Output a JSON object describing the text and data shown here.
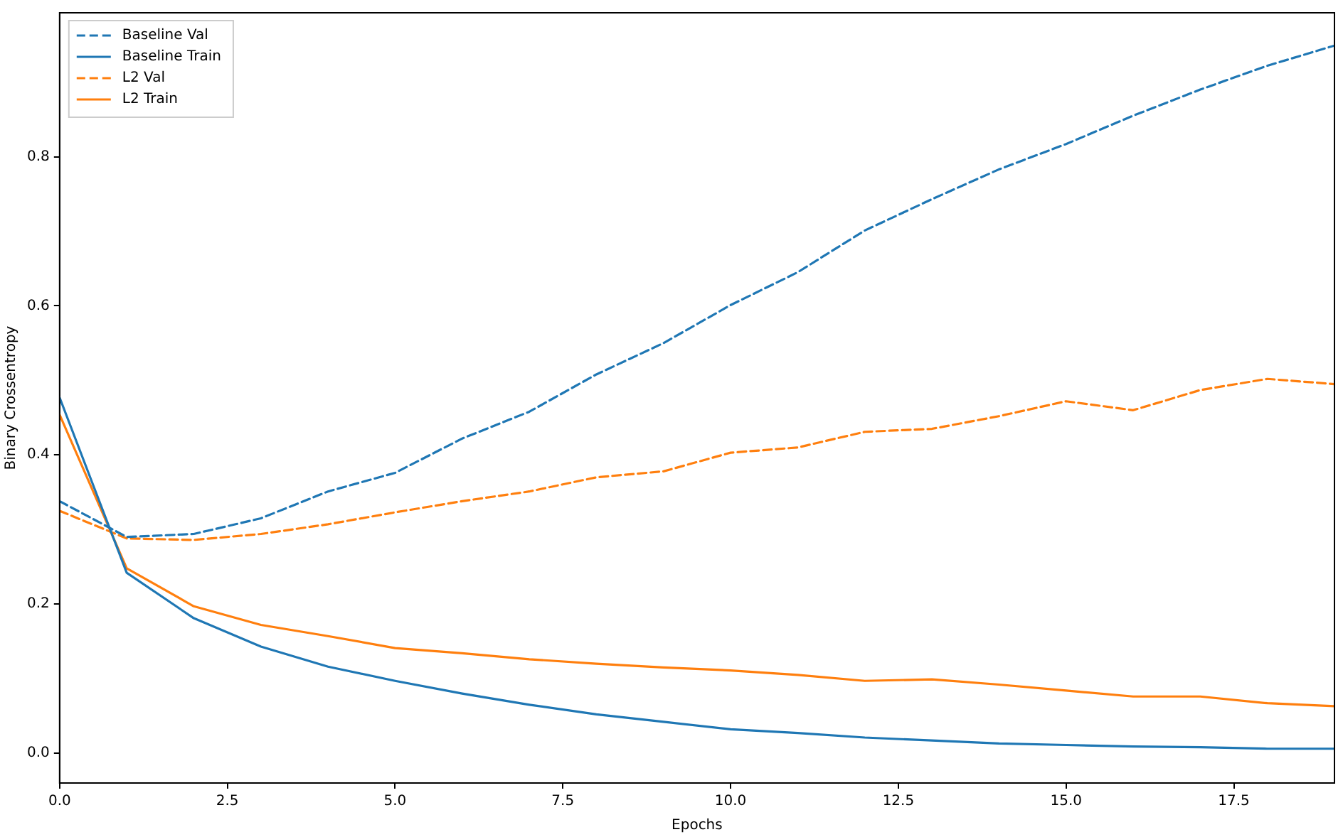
{
  "chart_data": {
    "type": "line",
    "xlabel": "Epochs",
    "ylabel": "Binary Crossentropy",
    "x": [
      0,
      1,
      2,
      3,
      4,
      5,
      6,
      7,
      8,
      9,
      10,
      11,
      12,
      13,
      14,
      15,
      16,
      17,
      18,
      19
    ],
    "series": [
      {
        "name": "Baseline Val",
        "color": "#1f77b4",
        "line_style": "dashed",
        "values": [
          0.338,
          0.29,
          0.294,
          0.315,
          0.351,
          0.376,
          0.422,
          0.458,
          0.508,
          0.55,
          0.601,
          0.645,
          0.701,
          0.743,
          0.783,
          0.817,
          0.855,
          0.89,
          0.922,
          0.949
        ]
      },
      {
        "name": "Baseline Train",
        "color": "#1f77b4",
        "line_style": "solid",
        "values": [
          0.477,
          0.242,
          0.181,
          0.143,
          0.116,
          0.097,
          0.08,
          0.065,
          0.052,
          0.042,
          0.032,
          0.027,
          0.021,
          0.017,
          0.013,
          0.011,
          0.009,
          0.008,
          0.006,
          0.006
        ]
      },
      {
        "name": "L2 Val",
        "color": "#ff7f0e",
        "line_style": "dashed",
        "values": [
          0.325,
          0.288,
          0.286,
          0.294,
          0.307,
          0.323,
          0.338,
          0.351,
          0.37,
          0.378,
          0.403,
          0.41,
          0.431,
          0.435,
          0.452,
          0.472,
          0.46,
          0.487,
          0.502,
          0.495
        ]
      },
      {
        "name": "L2 Train",
        "color": "#ff7f0e",
        "line_style": "solid",
        "values": [
          0.454,
          0.248,
          0.197,
          0.172,
          0.157,
          0.141,
          0.134,
          0.126,
          0.12,
          0.115,
          0.111,
          0.105,
          0.097,
          0.099,
          0.092,
          0.084,
          0.076,
          0.076,
          0.067,
          0.063
        ]
      }
    ],
    "xlim": [
      0,
      19
    ],
    "xticks": [
      {
        "value": 0,
        "label": "0.0"
      },
      {
        "value": 2.5,
        "label": "2.5"
      },
      {
        "value": 5,
        "label": "5.0"
      },
      {
        "value": 7.5,
        "label": "7.5"
      },
      {
        "value": 10,
        "label": "10.0"
      },
      {
        "value": 12.5,
        "label": "12.5"
      },
      {
        "value": 15,
        "label": "15.0"
      },
      {
        "value": 17.5,
        "label": "17.5"
      }
    ],
    "ylim": [
      -0.04,
      0.993
    ],
    "yticks": [
      {
        "value": 0,
        "label": "0.0"
      },
      {
        "value": 0.2,
        "label": "0.2"
      },
      {
        "value": 0.4,
        "label": "0.4"
      },
      {
        "value": 0.6,
        "label": "0.6"
      },
      {
        "value": 0.8,
        "label": "0.8"
      }
    ],
    "grid": false,
    "legend": "top left",
    "marker": "none"
  }
}
